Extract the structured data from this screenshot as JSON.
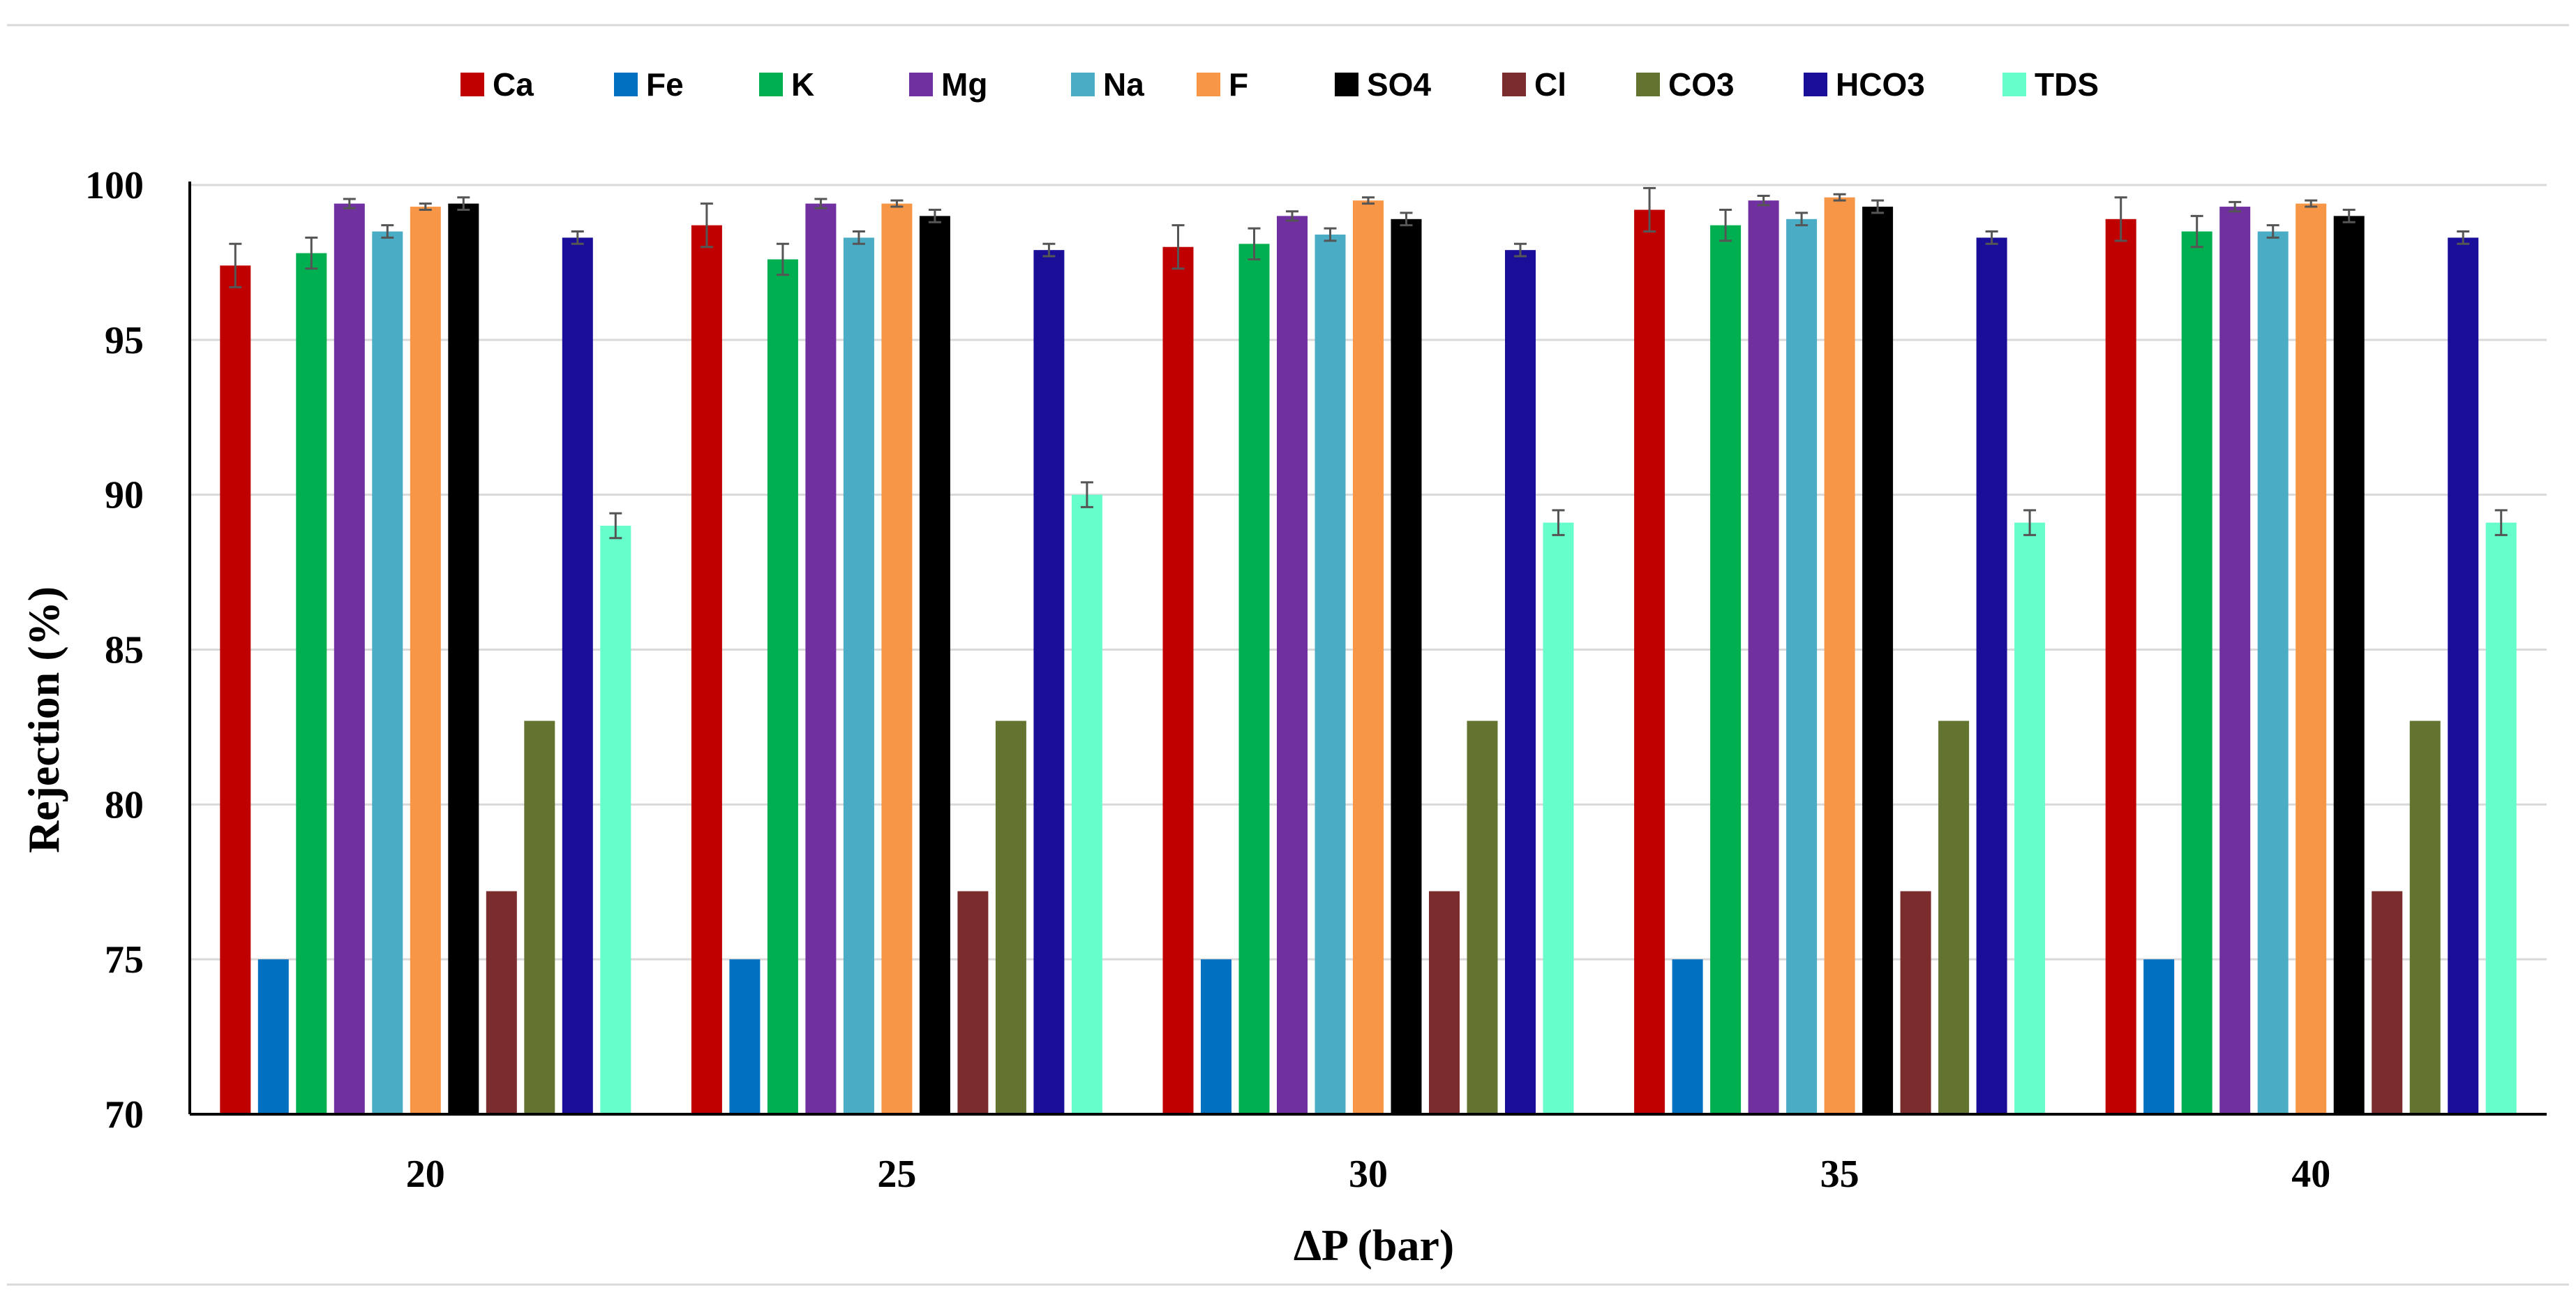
{
  "chart_data": {
    "type": "bar",
    "title": "",
    "xlabel": "ΔP (bar)",
    "ylabel": "Rejection (%)",
    "ylim": [
      70,
      100
    ],
    "yticks": [
      70,
      75,
      80,
      85,
      90,
      95,
      100
    ],
    "grid": true,
    "legend_position": "top",
    "categories": [
      "20",
      "25",
      "30",
      "35",
      "40"
    ],
    "series": [
      {
        "name": "Ca",
        "color": "#c00000",
        "values": [
          97.4,
          98.7,
          98.0,
          99.2,
          98.9
        ],
        "errors": [
          0.7,
          0.7,
          0.7,
          0.7,
          0.7
        ]
      },
      {
        "name": "Fe",
        "color": "#0070c0",
        "values": [
          75.0,
          75.0,
          75.0,
          75.0,
          75.0
        ],
        "errors": [
          0.0,
          0.0,
          0.0,
          0.0,
          0.0
        ]
      },
      {
        "name": "K",
        "color": "#00b050",
        "values": [
          97.8,
          97.6,
          98.1,
          98.7,
          98.5
        ],
        "errors": [
          0.5,
          0.5,
          0.5,
          0.5,
          0.5
        ]
      },
      {
        "name": "Mg",
        "color": "#7030a0",
        "values": [
          99.4,
          99.4,
          99.0,
          99.5,
          99.3
        ],
        "errors": [
          0.15,
          0.15,
          0.15,
          0.15,
          0.15
        ]
      },
      {
        "name": "Na",
        "color": "#4bacc6",
        "values": [
          98.5,
          98.3,
          98.4,
          98.9,
          98.5
        ],
        "errors": [
          0.2,
          0.2,
          0.2,
          0.2,
          0.2
        ]
      },
      {
        "name": "F",
        "color": "#f79646",
        "values": [
          99.3,
          99.4,
          99.5,
          99.6,
          99.4
        ],
        "errors": [
          0.1,
          0.1,
          0.1,
          0.1,
          0.1
        ]
      },
      {
        "name": "SO4",
        "color": "#000000",
        "values": [
          99.4,
          99.0,
          98.9,
          99.3,
          99.0
        ],
        "errors": [
          0.2,
          0.2,
          0.2,
          0.2,
          0.2
        ]
      },
      {
        "name": "Cl",
        "color": "#7b2c2c",
        "values": [
          77.2,
          77.2,
          77.2,
          77.2,
          77.2
        ],
        "errors": [
          0.0,
          0.0,
          0.0,
          0.0,
          0.0
        ]
      },
      {
        "name": "CO3",
        "color": "#637430",
        "values": [
          82.7,
          82.7,
          82.7,
          82.7,
          82.7
        ],
        "errors": [
          0.0,
          0.0,
          0.0,
          0.0,
          0.0
        ]
      },
      {
        "name": "HCO3",
        "color": "#1a0e99",
        "values": [
          98.3,
          97.9,
          97.9,
          98.3,
          98.3
        ],
        "errors": [
          0.2,
          0.2,
          0.2,
          0.2,
          0.2
        ]
      },
      {
        "name": "TDS",
        "color": "#66ffcc",
        "values": [
          89.0,
          90.0,
          89.1,
          89.1,
          89.1
        ],
        "errors": [
          0.4,
          0.4,
          0.4,
          0.4,
          0.4
        ]
      }
    ]
  }
}
